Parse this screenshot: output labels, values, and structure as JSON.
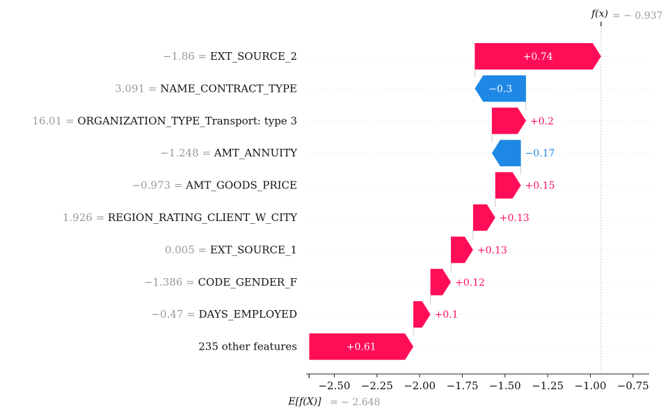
{
  "colors": {
    "positive": "#ff0d57",
    "negative": "#1e88e5",
    "value_text": "#999999",
    "grid": "#dddddd"
  },
  "chart_data": {
    "type": "waterfall",
    "base_value": -2.648,
    "output_value": -0.937,
    "base_label": "E[f(X)]",
    "base_value_text": "= − 2.648",
    "output_label": "f(x)",
    "output_value_text": "= − 0.937",
    "xlim": [
      -2.665,
      -0.655
    ],
    "xticks": [
      -2.5,
      -2.25,
      -2.0,
      -1.75,
      -1.5,
      -1.25,
      -1.0,
      -0.75
    ],
    "xtick_labels": [
      "−2.50",
      "−2.25",
      "−2.00",
      "−1.75",
      "−1.50",
      "−1.25",
      "−1.00",
      "−0.75"
    ],
    "features": [
      {
        "name": "EXT_SOURCE_2",
        "value_text": "−1.86 =",
        "contribution": 0.74,
        "label": "+0.74"
      },
      {
        "name": "NAME_CONTRACT_TYPE",
        "value_text": "3.091 =",
        "contribution": -0.3,
        "label": "−0.3"
      },
      {
        "name": "ORGANIZATION_TYPE_Transport: type 3",
        "value_text": "16.01 =",
        "contribution": 0.2,
        "label": "+0.2"
      },
      {
        "name": "AMT_ANNUITY",
        "value_text": "−1.248 =",
        "contribution": -0.17,
        "label": "−0.17"
      },
      {
        "name": "AMT_GOODS_PRICE",
        "value_text": "−0.973 =",
        "contribution": 0.15,
        "label": "+0.15"
      },
      {
        "name": "REGION_RATING_CLIENT_W_CITY",
        "value_text": "1.926 =",
        "contribution": 0.13,
        "label": "+0.13"
      },
      {
        "name": "EXT_SOURCE_1",
        "value_text": "0.005 =",
        "contribution": 0.13,
        "label": "+0.13"
      },
      {
        "name": "CODE_GENDER_F",
        "value_text": "−1.386 =",
        "contribution": 0.12,
        "label": "+0.12"
      },
      {
        "name": "DAYS_EMPLOYED",
        "value_text": "−0.47 =",
        "contribution": 0.1,
        "label": "+0.1"
      },
      {
        "name": "235 other features",
        "value_text": "",
        "contribution": 0.61,
        "label": "+0.61"
      }
    ]
  }
}
